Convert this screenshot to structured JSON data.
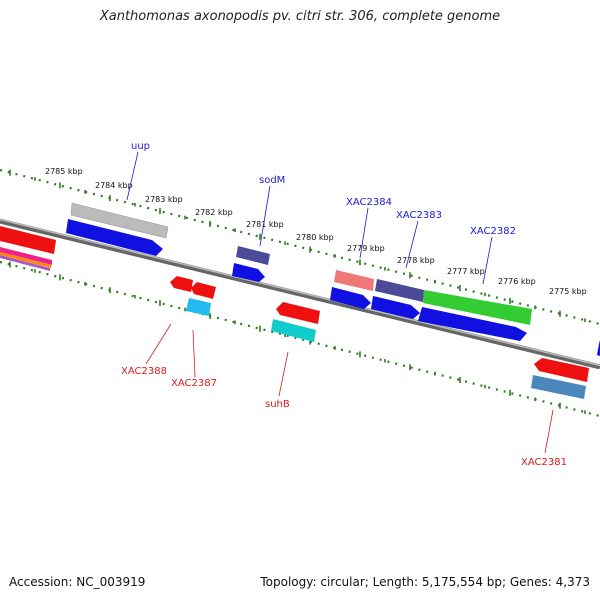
{
  "title": "Xanthomonas axonopodis pv. citri str. 306, complete genome",
  "footer": {
    "accession": "Accession: NC_003919",
    "summary": "Topology: circular; Length: 5,175,554 bp; Genes: 4,373"
  },
  "scale_labels": [
    "2785 kbp",
    "2784 kbp",
    "2783 kbp",
    "2782 kbp",
    "2781 kbp",
    "2780 kbp",
    "2779 kbp",
    "2778 kbp",
    "2777 kbp",
    "2776 kbp",
    "2775 kbp"
  ],
  "gene_labels_top": [
    "uup",
    "sodM",
    "XAC2384",
    "XAC2383",
    "XAC2382"
  ],
  "gene_labels_bottom": [
    "XAC2388",
    "XAC2387",
    "suhB",
    "XAC2381"
  ],
  "colors": {
    "backbone": "#888888",
    "tick": "#2e7d1e",
    "label_top": "#1a1ad6",
    "label_bottom": "#dd1a1a",
    "gene_blue": "#1010e0",
    "gene_red": "#ee1010",
    "gene_gray": "#bbbbbb",
    "gene_navy": "#4a4a99",
    "gene_green": "#33cc33",
    "gene_salmon": "#ee7777",
    "gene_cyan": "#11cccc",
    "gene_lightblue": "#22bbee",
    "gene_steel": "#4a88bb"
  }
}
